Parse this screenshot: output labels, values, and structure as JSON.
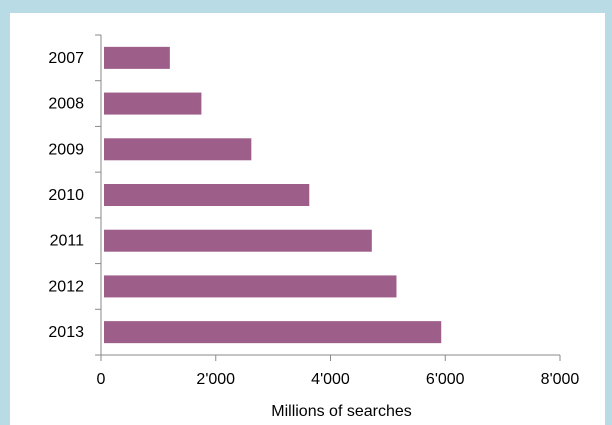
{
  "chart_data": {
    "type": "bar",
    "orientation": "horizontal",
    "categories": [
      "2007",
      "2008",
      "2009",
      "2010",
      "2011",
      "2012",
      "2013"
    ],
    "values": [
      1200,
      1750,
      2620,
      3630,
      4720,
      5150,
      5930
    ],
    "xlabel": "Millions of searches",
    "xlim": [
      0,
      8000
    ],
    "x_ticks": [
      0,
      2000,
      4000,
      6000,
      8000
    ],
    "x_tick_labels": [
      "0",
      "2'000",
      "4'000",
      "6'000",
      "8'000"
    ],
    "grid": false,
    "bar_color": "#9e5e8a",
    "background_color": "#b9dbe6"
  }
}
